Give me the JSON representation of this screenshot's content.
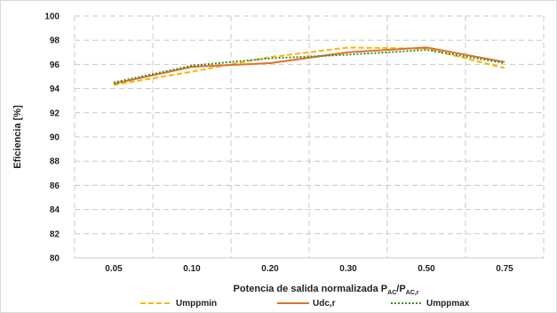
{
  "chart_data": {
    "type": "line",
    "categories": [
      "0.05",
      "0.10",
      "0.20",
      "0.30",
      "0.50",
      "0.75"
    ],
    "series": [
      {
        "name": "Umppmin",
        "values": [
          94.3,
          95.4,
          96.6,
          97.4,
          97.3,
          95.7
        ],
        "color": "#F5B800",
        "dash": "dashed"
      },
      {
        "name": "Udc,r",
        "values": [
          94.4,
          95.8,
          96.1,
          97.0,
          97.4,
          96.2
        ],
        "color": "#E0702A",
        "dash": "solid"
      },
      {
        "name": "Umppmax",
        "values": [
          94.5,
          95.9,
          96.5,
          96.8,
          97.2,
          96.1
        ],
        "color": "#3E8E2E",
        "dash": "dotted"
      }
    ],
    "y_ticks": [
      "80",
      "82",
      "84",
      "86",
      "88",
      "90",
      "92",
      "94",
      "96",
      "98",
      "100"
    ],
    "ylim": [
      80,
      100
    ],
    "ylabel": "Eficiencia [%]",
    "xlabel": {
      "main": "Potencia de salida normalizada P",
      "sub1": "AC",
      "mid": "/P",
      "sub2": "AC,r"
    },
    "grid": "dashed",
    "legend_position": "bottom"
  }
}
